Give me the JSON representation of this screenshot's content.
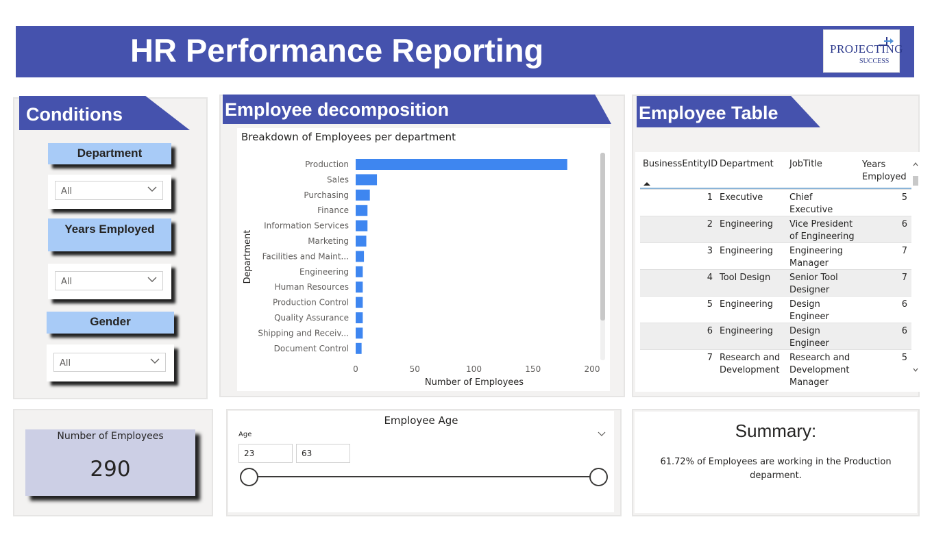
{
  "header": {
    "title": "HR Performance Reporting",
    "logo_text_main": "PROJECTING",
    "logo_text_sub": "SUCCESS"
  },
  "conditions": {
    "title": "Conditions",
    "filters": [
      {
        "label": "Department",
        "value": "All"
      },
      {
        "label": "Years Employed",
        "value": "All"
      },
      {
        "label": "Gender",
        "value": "All"
      }
    ]
  },
  "decomposition": {
    "title": "Employee decomposition"
  },
  "chart_data": {
    "type": "bar",
    "orientation": "horizontal",
    "title": "Breakdown of Employees per department",
    "xlabel": "Number of Employees",
    "ylabel": "Department",
    "categories": [
      "Production",
      "Sales",
      "Purchasing",
      "Finance",
      "Information Services",
      "Marketing",
      "Facilities and Maint...",
      "Engineering",
      "Human Resources",
      "Production Control",
      "Quality Assurance",
      "Shipping and Receiv...",
      "Document Control"
    ],
    "values": [
      179,
      18,
      12,
      10,
      10,
      9,
      7,
      6,
      6,
      6,
      6,
      6,
      5
    ],
    "xticks": [
      0,
      50,
      100,
      150,
      200
    ],
    "xlim": [
      0,
      200
    ],
    "bar_color": "#3e86f0"
  },
  "employee_table": {
    "title": "Employee Table",
    "columns": [
      "BusinessEntityID",
      "Department",
      "JobTitle",
      "Years Employed"
    ],
    "rows": [
      {
        "id": "1",
        "department": "Executive",
        "job": "Chief Executive Officer",
        "years": "5"
      },
      {
        "id": "2",
        "department": "Engineering",
        "job": "Vice President of Engineering",
        "years": "6"
      },
      {
        "id": "3",
        "department": "Engineering",
        "job": "Engineering Manager",
        "years": "7"
      },
      {
        "id": "4",
        "department": "Tool Design",
        "job": "Senior Tool Designer",
        "years": "7"
      },
      {
        "id": "5",
        "department": "Engineering",
        "job": "Design Engineer",
        "years": "6"
      },
      {
        "id": "6",
        "department": "Engineering",
        "job": "Design Engineer",
        "years": "6"
      },
      {
        "id": "7",
        "department": "Research and Development",
        "job": "Research and Development Manager",
        "years": "5"
      }
    ]
  },
  "employee_count": {
    "label": "Number of Employees",
    "value": "290"
  },
  "age_filter": {
    "title": "Employee Age",
    "label": "Age",
    "min": "23",
    "max": "63"
  },
  "summary": {
    "title": "Summary:",
    "text": "61.72% of Employees are working in the Production deparment."
  },
  "colors": {
    "brand": "#4552ad",
    "filter_label": "#a8cbf7",
    "card": "#cccfe5"
  }
}
